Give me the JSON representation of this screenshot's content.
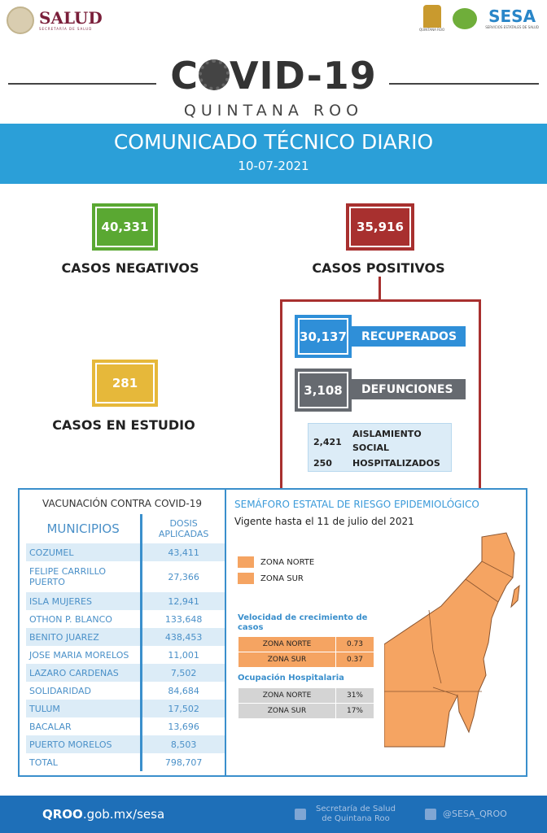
{
  "header": {
    "salud_title": "SALUD",
    "salud_subtitle": "SECRETARÍA DE SALUD",
    "qroo_logo": "QUINTANA ROO",
    "sesa_title": "SESA",
    "sesa_subtitle": "SERVICIOS ESTATALES DE SALUD"
  },
  "title": {
    "covid_a": "C",
    "covid_b": "VID-19",
    "region": "QUINTANA ROO"
  },
  "band": {
    "title": "COMUNICADO TÉCNICO DIARIO",
    "date": "10-07-2021"
  },
  "stats": {
    "negativos": {
      "value": "40,331",
      "label": "CASOS NEGATIVOS",
      "color": "#5aa832"
    },
    "positivos": {
      "value": "35,916",
      "label": "CASOS POSITIVOS",
      "color": "#a8302f"
    },
    "estudio": {
      "value": "281",
      "label": "CASOS EN ESTUDIO",
      "color": "#e6b83a"
    },
    "recuperados": {
      "value": "30,137",
      "label": "RECUPERADOS",
      "color": "#2f8fd8"
    },
    "defunciones": {
      "value": "3,108",
      "label": "DEFUNCIONES",
      "color": "#666a70"
    },
    "aislamiento": {
      "value": "2,421",
      "label": "AISLAMIENTO SOCIAL"
    },
    "hospitalizados": {
      "value": "250",
      "label": "HOSPITALIZADOS"
    }
  },
  "vacunacion": {
    "title": "VACUNACIÓN CONTRA COVID-19",
    "col_municipios": "MUNICIPIOS",
    "col_dosis": "DOSIS APLICADAS",
    "rows": [
      [
        "COZUMEL",
        "43,411"
      ],
      [
        "FELIPE CARRILLO PUERTO",
        "27,366"
      ],
      [
        "ISLA MUJERES",
        "12,941"
      ],
      [
        "OTHON P. BLANCO",
        "133,648"
      ],
      [
        "BENITO JUAREZ",
        "438,453"
      ],
      [
        "JOSE MARIA MORELOS",
        "11,001"
      ],
      [
        "LAZARO CARDENAS",
        "7,502"
      ],
      [
        "SOLIDARIDAD",
        "84,684"
      ],
      [
        "TULUM",
        "17,502"
      ],
      [
        "BACALAR",
        "13,696"
      ],
      [
        "PUERTO MORELOS",
        "8,503"
      ],
      [
        "TOTAL",
        "798,707"
      ]
    ]
  },
  "semaforo": {
    "title": "SEMÁFORO ESTATAL DE RIESGO EPIDEMIOLÓGICO",
    "vigente": "Vigente hasta el 11 de julio del 2021",
    "legend": [
      "ZONA NORTE",
      "ZONA SUR"
    ],
    "zone_color": "#f5a462",
    "velocidad_title": "Velocidad de crecimiento de casos",
    "velocidad": [
      [
        "ZONA NORTE",
        "0.73"
      ],
      [
        "ZONA SUR",
        "0.37"
      ]
    ],
    "ocupacion_title": "Ocupación Hospitalaria",
    "ocupacion": [
      [
        "ZONA NORTE",
        "31%"
      ],
      [
        "ZONA SUR",
        "17%"
      ]
    ]
  },
  "footer": {
    "site_bold": "QROO",
    "site_rest": ".gob.mx/sesa",
    "facebook": "Secretaría de Salud de Quintana Roo",
    "twitter": "@SESA_QROO"
  }
}
